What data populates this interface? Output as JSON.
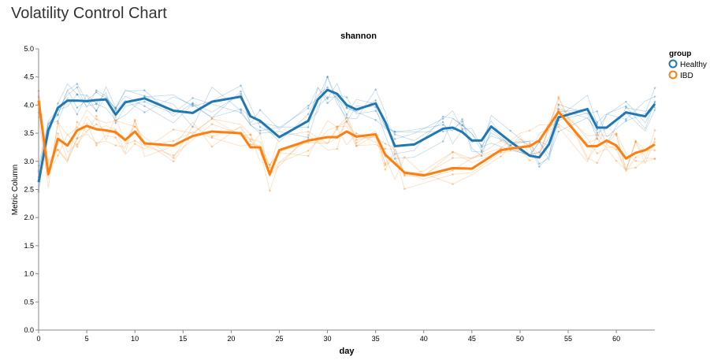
{
  "page": {
    "title": "Volatility Control Chart"
  },
  "colors": {
    "healthy": "#1f77b4",
    "ibd": "#ff7f0e",
    "axis": "#888888",
    "text": "#000000"
  },
  "chart_data": {
    "type": "line",
    "title": "shannon",
    "xlabel": "day",
    "ylabel": "Metric Column",
    "xlim": [
      0,
      64
    ],
    "ylim": [
      0,
      5
    ],
    "x_ticks": [
      0,
      5,
      10,
      15,
      20,
      25,
      30,
      35,
      40,
      45,
      50,
      55,
      60
    ],
    "x_tick_labels": [
      "0",
      "5",
      "10",
      "15",
      "20",
      "25",
      "30",
      "35",
      "40",
      "45",
      "50",
      "55",
      "60"
    ],
    "y_ticks": [
      0,
      0.5,
      1,
      1.5,
      2,
      2.5,
      3,
      3.5,
      4,
      4.5,
      5
    ],
    "y_tick_labels": [
      "0.0",
      "0.5",
      "1.0",
      "1.5",
      "2.0",
      "2.5",
      "3.0",
      "3.5",
      "4.0",
      "4.5",
      "5.0"
    ],
    "grid": false,
    "legend": {
      "title": "group",
      "position": "top-right",
      "entries": [
        "Healthy",
        "IBD"
      ]
    },
    "series": [
      {
        "name": "Healthy",
        "color": "#1f77b4",
        "x": [
          0,
          1,
          2,
          3,
          4,
          5,
          6,
          7,
          8,
          9,
          11,
          14,
          16,
          18,
          21,
          22,
          23,
          25,
          28,
          29,
          30,
          31,
          32,
          33,
          35,
          36,
          37,
          39,
          42,
          43,
          44,
          45,
          46,
          47,
          49,
          51,
          52,
          53,
          54,
          57,
          58,
          59,
          61,
          63,
          64
        ],
        "y": [
          2.63,
          3.55,
          3.95,
          4.08,
          4.08,
          4.07,
          4.09,
          4.1,
          3.83,
          4.05,
          4.12,
          3.9,
          3.86,
          4.06,
          4.15,
          3.8,
          3.72,
          3.43,
          3.72,
          4.1,
          4.27,
          4.2,
          4.0,
          3.92,
          4.03,
          3.7,
          3.27,
          3.3,
          3.58,
          3.6,
          3.52,
          3.37,
          3.37,
          3.62,
          3.35,
          3.1,
          3.07,
          3.3,
          3.78,
          3.93,
          3.6,
          3.6,
          3.87,
          3.8,
          4.02
        ]
      },
      {
        "name": "IBD",
        "color": "#ff7f0e",
        "x": [
          0,
          1,
          2,
          3,
          4,
          5,
          6,
          7,
          8,
          9,
          10,
          11,
          14,
          16,
          18,
          21,
          22,
          23,
          24,
          25,
          28,
          30,
          31,
          32,
          33,
          35,
          36,
          37,
          38,
          40,
          43,
          45,
          48,
          50,
          51,
          52,
          54,
          57,
          58,
          59,
          60,
          61,
          62,
          63,
          64
        ],
        "y": [
          4.08,
          2.77,
          3.4,
          3.28,
          3.55,
          3.63,
          3.57,
          3.55,
          3.52,
          3.38,
          3.53,
          3.32,
          3.28,
          3.45,
          3.53,
          3.5,
          3.25,
          3.25,
          2.77,
          3.2,
          3.37,
          3.43,
          3.43,
          3.53,
          3.44,
          3.48,
          3.12,
          2.96,
          2.8,
          2.75,
          2.88,
          2.87,
          3.2,
          3.25,
          3.27,
          3.37,
          3.88,
          3.27,
          3.27,
          3.37,
          3.28,
          3.05,
          3.15,
          3.2,
          3.3
        ]
      }
    ]
  }
}
